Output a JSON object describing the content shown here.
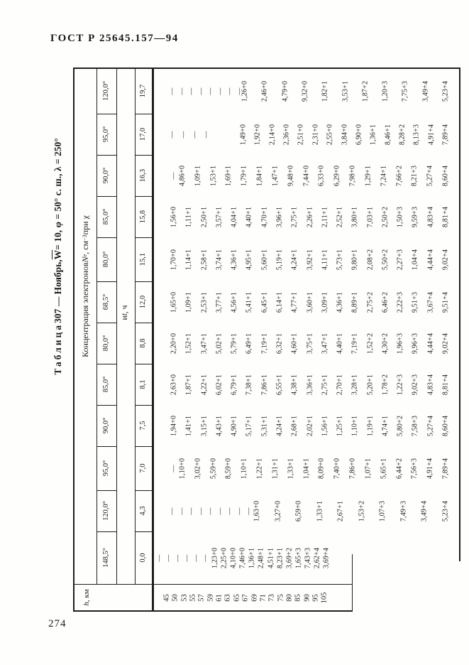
{
  "page": {
    "doc_header": "ГОСТ Р 25645.157—94",
    "page_number": "274"
  },
  "table": {
    "title": {
      "word": "Таблица",
      "prefix": " 307 — Ноябрь, ",
      "overline": "W",
      "suffix": " = 10, φ = 50° с. ш., λ = 250°"
    },
    "header": {
      "main_prefix": "Концентрация электронов ",
      "symbol": "N",
      "symbol_sub": "e",
      "unit_prefix": ", см ",
      "unit_sup": "−3",
      "main_suffix": " при χ",
      "sub_prefix": "и ",
      "sub_symbol": "t",
      "sub_suffix": ", ч",
      "h_symbol": "h",
      "h_suffix": ", км"
    },
    "h_values": [
      "45",
      "50",
      "53",
      "55",
      "57",
      "59",
      "61",
      "63",
      "65",
      "67",
      "69",
      "71",
      "73",
      "75",
      "80",
      "85",
      "90",
      "95",
      "105"
    ],
    "bands": [
      {
        "chi": "120,0°",
        "t": "19,7",
        "values": [
          "—",
          "—",
          "—",
          "—",
          "—",
          "—",
          "—",
          "—",
          "1,26+0",
          "2,46+0",
          "4,79+0",
          "9,32+0",
          "1,82+1",
          "3,53+1",
          "1,87+2",
          "1,20+3",
          "7,75+3",
          "3,49+4",
          "5,23+4"
        ]
      },
      {
        "chi": "95,0°",
        "t": "17,0",
        "values": [
          "—",
          "—",
          "—",
          "—",
          "1,49+0",
          "1,92+0",
          "2,14+0",
          "2,36+0",
          "2,51+0",
          "2,31+0",
          "2,55+0",
          "3,84+0",
          "6,90+0",
          "1,36+1",
          "8,46+1",
          "8,28+2",
          "8,13+3",
          "4,91+4",
          "7,89+4"
        ]
      },
      {
        "chi": "90,0°",
        "t": "16,3",
        "values": [
          "—",
          "4,86+0",
          "1,09+1",
          "1,53+1",
          "1,69+1",
          "1,79+1",
          "1,84+1",
          "1,47+1",
          "9,48+0",
          "7,44+0",
          "6,33+0",
          "6,29+0",
          "7,98+0",
          "1,29+1",
          "7,24+1",
          "7,66+2",
          "8,21+3",
          "5,27+4",
          "8,60+4"
        ]
      },
      {
        "chi": "85,0°",
        "t": "15,8",
        "values": [
          "1,56+0",
          "1,11+1",
          "2,50+1",
          "3,57+1",
          "4,04+1",
          "4,40+1",
          "4,70+1",
          "3,96+1",
          "2,75+1",
          "2,26+1",
          "2,11+1",
          "2,52+1",
          "3,80+1",
          "7,03+1",
          "2,50+2",
          "1,50+3",
          "9,59+3",
          "4,83+4",
          "8,81+4"
        ]
      },
      {
        "chi": "80,0°",
        "t": "15,1",
        "values": [
          "1,70+0",
          "1,14+1",
          "2,58+1",
          "3,74+1",
          "4,36+1",
          "4,95+1",
          "5,60+1",
          "5,19+1",
          "4,24+1",
          "3,92+1",
          "4,11+1",
          "5,73+1",
          "9,80+1",
          "2,08+2",
          "5,50+2",
          "2,27+3",
          "1,04+4",
          "4,44+4",
          "9,02+4"
        ]
      },
      {
        "chi": "68,5°",
        "t": "12,0",
        "values": [
          "1,65+0",
          "1,09+1",
          "2,53+1",
          "3,77+1",
          "4,56+1",
          "5,41+1",
          "6,45+1",
          "6,14+1",
          "4,77+1",
          "3,60+1",
          "3,09+1",
          "4,36+1",
          "8,89+1",
          "2,75+2",
          "6,46+2",
          "2,22+3",
          "9,51+3",
          "3,67+4",
          "9,51+4"
        ]
      },
      {
        "chi": "80,0°",
        "t": "8,8",
        "values": [
          "2,20+0",
          "1,52+1",
          "3,47+1",
          "5,02+1",
          "5,79+1",
          "6,49+1",
          "7,19+1",
          "6,32+1",
          "4,60+1",
          "3,75+1",
          "3,47+1",
          "4,40+1",
          "7,19+1",
          "1,52+2",
          "4,30+2",
          "1,96+3",
          "9,96+3",
          "4,44+4",
          "9,02+4"
        ]
      },
      {
        "chi": "85,0°",
        "t": "8,1",
        "values": [
          "2,63+0",
          "1,87+1",
          "4,22+1",
          "6,02+1",
          "6,79+1",
          "7,38+1",
          "7,86+1",
          "6,55+1",
          "4,38+1",
          "3,36+1",
          "2,75+1",
          "2,70+1",
          "3,28+1",
          "5,20+1",
          "1,78+2",
          "1,22+3",
          "9,02+3",
          "4,83+4",
          "8,81+4"
        ]
      },
      {
        "chi": "90,0°",
        "t": "7,5",
        "values": [
          "1,94+0",
          "1,41+1",
          "3,15+1",
          "4,43+1",
          "4,90+1",
          "5,17+1",
          "5,31+1",
          "4,24+1",
          "2,68+1",
          "2,02+1",
          "1,56+1",
          "1,25+1",
          "1,10+1",
          "1,19+1",
          "4,74+1",
          "5,80+2",
          "7,58+3",
          "5,27+4",
          "8,60+4"
        ]
      },
      {
        "chi": "95,0°",
        "t": "7,0",
        "values": [
          "—",
          "1,10+0",
          "3,02+0",
          "5,59+0",
          "8,59+0",
          "1,10+1",
          "1,22+1",
          "1,31+1",
          "1,33+1",
          "1,04+1",
          "8,09+0",
          "7,40+0",
          "7,86+0",
          "1,07+1",
          "5,65+1",
          "6,44+2",
          "7,56+3",
          "4,91+4",
          "7,89+4"
        ]
      },
      {
        "chi": "120,0°",
        "t": "4,3",
        "values": [
          "—",
          "—",
          "—",
          "—",
          "—",
          "—",
          "—",
          "—",
          "—",
          "1,63+0",
          "3,27+0",
          "6,59+0",
          "1,33+1",
          "2,67+1",
          "1,53+2",
          "1,07+3",
          "7,49+3",
          "3,49+4",
          "5,23+4"
        ]
      },
      {
        "chi": "148,5°",
        "t": "0,0",
        "values": [
          "—",
          "—",
          "—",
          "—",
          "—",
          "—",
          "1,23+0",
          "2,25+0",
          "4,10+0",
          "7,46+0",
          "1,36+1",
          "2,48+1",
          "4,51+1",
          "8,23+1",
          "3,69+2",
          "1,65+3",
          "7,43+3",
          "2,62+4",
          "3,69+4"
        ]
      }
    ]
  }
}
